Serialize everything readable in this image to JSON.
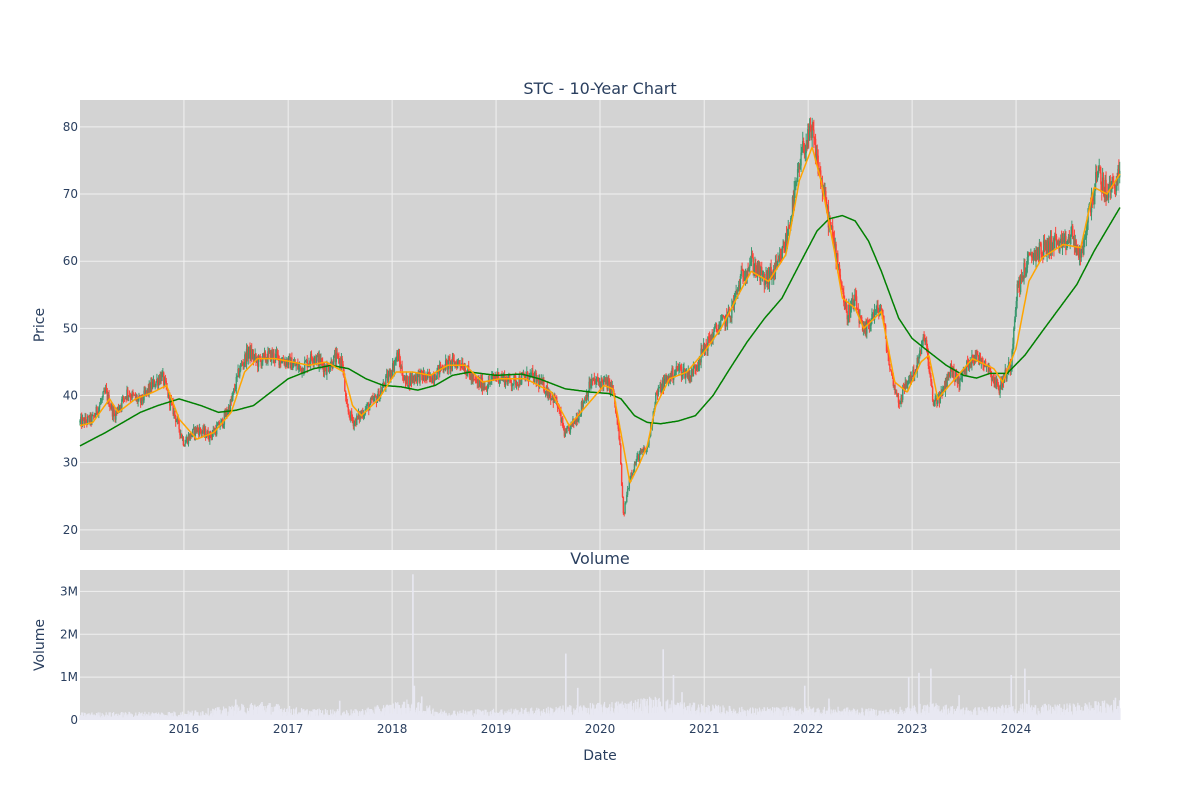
{
  "chart_data": [
    {
      "type": "candlestick",
      "title": "STC - 10-Year Chart",
      "ylabel": "Price",
      "xlabel": "",
      "x_range": [
        "2015-01-01",
        "2024-12-31"
      ],
      "ylim": [
        17,
        84
      ],
      "y_ticks": [
        20,
        30,
        40,
        50,
        60,
        70,
        80
      ],
      "x_tick_labels": [
        "2016",
        "2017",
        "2018",
        "2019",
        "2020",
        "2021",
        "2022",
        "2023",
        "2024"
      ],
      "grid": true,
      "colors": {
        "increasing": "#3d9970",
        "decreasing": "#ff4136",
        "ma_short": "#ffa500",
        "ma_long": "#008000",
        "plot_bg": "#d3d3d3"
      },
      "price_path": [
        [
          "2015-01-01",
          36
        ],
        [
          "2015-02-15",
          36.5
        ],
        [
          "2015-04-01",
          40.5
        ],
        [
          "2015-05-01",
          37
        ],
        [
          "2015-06-15",
          40.5
        ],
        [
          "2015-08-01",
          39
        ],
        [
          "2015-09-01",
          41
        ],
        [
          "2015-10-15",
          43
        ],
        [
          "2015-11-15",
          39
        ],
        [
          "2016-01-01",
          33
        ],
        [
          "2016-02-15",
          35
        ],
        [
          "2016-04-01",
          34
        ],
        [
          "2016-05-15",
          36
        ],
        [
          "2016-06-15",
          39
        ],
        [
          "2016-07-15",
          44
        ],
        [
          "2016-08-15",
          46.5
        ],
        [
          "2016-09-15",
          45
        ],
        [
          "2016-11-01",
          46
        ],
        [
          "2017-01-01",
          45
        ],
        [
          "2017-02-15",
          44
        ],
        [
          "2017-04-01",
          46
        ],
        [
          "2017-05-15",
          44
        ],
        [
          "2017-06-15",
          45.5
        ],
        [
          "2017-07-10",
          45
        ],
        [
          "2017-07-25",
          38
        ],
        [
          "2017-08-20",
          36
        ],
        [
          "2017-10-01",
          38
        ],
        [
          "2017-11-15",
          40
        ],
        [
          "2018-01-01",
          44
        ],
        [
          "2018-01-20",
          46
        ],
        [
          "2018-02-15",
          42
        ],
        [
          "2018-04-01",
          43
        ],
        [
          "2018-05-15",
          42.5
        ],
        [
          "2018-07-01",
          44.5
        ],
        [
          "2018-09-01",
          45
        ],
        [
          "2018-10-15",
          42
        ],
        [
          "2018-12-01",
          41.5
        ],
        [
          "2019-01-01",
          43
        ],
        [
          "2019-03-01",
          42
        ],
        [
          "2019-05-01",
          43
        ],
        [
          "2019-06-15",
          41.5
        ],
        [
          "2019-08-01",
          39
        ],
        [
          "2019-09-01",
          34
        ],
        [
          "2019-10-15",
          37
        ],
        [
          "2019-12-01",
          42
        ],
        [
          "2020-01-15",
          42
        ],
        [
          "2020-02-15",
          41
        ],
        [
          "2020-03-10",
          33
        ],
        [
          "2020-03-23",
          22
        ],
        [
          "2020-04-15",
          28
        ],
        [
          "2020-05-15",
          31
        ],
        [
          "2020-06-15",
          32
        ],
        [
          "2020-07-15",
          40
        ],
        [
          "2020-08-15",
          42
        ],
        [
          "2020-10-01",
          44
        ],
        [
          "2020-11-15",
          43
        ],
        [
          "2021-01-01",
          47
        ],
        [
          "2021-02-15",
          50
        ],
        [
          "2021-04-01",
          52
        ],
        [
          "2021-05-15",
          58
        ],
        [
          "2021-06-15",
          60
        ],
        [
          "2021-08-01",
          57
        ],
        [
          "2021-09-15",
          59
        ],
        [
          "2021-10-15",
          63
        ],
        [
          "2021-11-15",
          70
        ],
        [
          "2021-12-15",
          77
        ],
        [
          "2022-01-15",
          79
        ],
        [
          "2022-02-15",
          72
        ],
        [
          "2022-03-15",
          66
        ],
        [
          "2022-04-15",
          60
        ],
        [
          "2022-05-15",
          52
        ],
        [
          "2022-06-15",
          54
        ],
        [
          "2022-07-15",
          49
        ],
        [
          "2022-08-15",
          52
        ],
        [
          "2022-09-15",
          53
        ],
        [
          "2022-10-15",
          44
        ],
        [
          "2022-11-15",
          39
        ],
        [
          "2022-12-15",
          42
        ],
        [
          "2023-01-15",
          44
        ],
        [
          "2023-02-15",
          49
        ],
        [
          "2023-03-15",
          39
        ],
        [
          "2023-04-15",
          40
        ],
        [
          "2023-05-15",
          44
        ],
        [
          "2023-06-15",
          42
        ],
        [
          "2023-08-01",
          46
        ],
        [
          "2023-09-15",
          45
        ],
        [
          "2023-11-01",
          41
        ],
        [
          "2023-12-15",
          45
        ],
        [
          "2024-01-01",
          55
        ],
        [
          "2024-02-01",
          59
        ],
        [
          "2024-03-01",
          61
        ],
        [
          "2024-04-15",
          62
        ],
        [
          "2024-05-15",
          63
        ],
        [
          "2024-06-15",
          62
        ],
        [
          "2024-07-15",
          64
        ],
        [
          "2024-08-15",
          60
        ],
        [
          "2024-09-15",
          68
        ],
        [
          "2024-10-15",
          73
        ],
        [
          "2024-11-15",
          70
        ],
        [
          "2024-12-31",
          73
        ]
      ],
      "ma_long": [
        [
          "2015-01-01",
          32.5
        ],
        [
          "2015-04-01",
          34.5
        ],
        [
          "2015-08-01",
          37.5
        ],
        [
          "2015-10-01",
          38.5
        ],
        [
          "2015-12-15",
          39.5
        ],
        [
          "2016-03-01",
          38.5
        ],
        [
          "2016-05-01",
          37.5
        ],
        [
          "2016-07-01",
          37.8
        ],
        [
          "2016-09-01",
          38.5
        ],
        [
          "2016-11-01",
          40.5
        ],
        [
          "2017-01-01",
          42.5
        ],
        [
          "2017-04-01",
          44
        ],
        [
          "2017-06-01",
          44.5
        ],
        [
          "2017-08-01",
          44
        ],
        [
          "2017-10-01",
          42.5
        ],
        [
          "2017-12-01",
          41.5
        ],
        [
          "2018-02-01",
          41.3
        ],
        [
          "2018-04-01",
          40.8
        ],
        [
          "2018-06-01",
          41.5
        ],
        [
          "2018-08-01",
          43
        ],
        [
          "2018-10-01",
          43.5
        ],
        [
          "2019-01-01",
          43
        ],
        [
          "2019-04-01",
          43.2
        ],
        [
          "2019-06-01",
          42.5
        ],
        [
          "2019-09-01",
          41
        ],
        [
          "2019-12-01",
          40.5
        ],
        [
          "2020-02-01",
          40.3
        ],
        [
          "2020-03-15",
          39.5
        ],
        [
          "2020-05-01",
          37
        ],
        [
          "2020-06-15",
          36
        ],
        [
          "2020-08-01",
          35.8
        ],
        [
          "2020-10-01",
          36.2
        ],
        [
          "2020-12-01",
          37
        ],
        [
          "2021-02-01",
          40
        ],
        [
          "2021-04-01",
          44
        ],
        [
          "2021-06-01",
          48
        ],
        [
          "2021-08-01",
          51.5
        ],
        [
          "2021-10-01",
          54.5
        ],
        [
          "2021-12-01",
          59.5
        ],
        [
          "2022-02-01",
          64.5
        ],
        [
          "2022-03-15",
          66.3
        ],
        [
          "2022-05-01",
          66.8
        ],
        [
          "2022-06-15",
          66
        ],
        [
          "2022-08-01",
          63
        ],
        [
          "2022-09-15",
          58.5
        ],
        [
          "2022-11-15",
          51.5
        ],
        [
          "2023-01-01",
          48.5
        ],
        [
          "2023-03-01",
          46.5
        ],
        [
          "2023-05-01",
          44.5
        ],
        [
          "2023-07-01",
          43
        ],
        [
          "2023-08-15",
          42.6
        ],
        [
          "2023-10-01",
          43.3
        ],
        [
          "2023-12-01",
          43.3
        ],
        [
          "2024-02-01",
          46
        ],
        [
          "2024-04-01",
          49.5
        ],
        [
          "2024-06-01",
          53
        ],
        [
          "2024-08-01",
          56.5
        ],
        [
          "2024-10-01",
          61.5
        ],
        [
          "2024-12-31",
          68
        ]
      ],
      "ma_short": [
        [
          "2015-01-01",
          35.5
        ],
        [
          "2015-02-15",
          36
        ],
        [
          "2015-04-15",
          39.5
        ],
        [
          "2015-05-15",
          37.5
        ],
        [
          "2015-07-15",
          39.5
        ],
        [
          "2015-09-15",
          40.5
        ],
        [
          "2015-11-01",
          41.5
        ],
        [
          "2015-12-15",
          36.5
        ],
        [
          "2016-02-15",
          33.5
        ],
        [
          "2016-04-15",
          34.5
        ],
        [
          "2016-06-15",
          37.5
        ],
        [
          "2016-08-01",
          43.5
        ],
        [
          "2016-09-15",
          45.5
        ],
        [
          "2016-11-15",
          45.5
        ],
        [
          "2017-01-15",
          45
        ],
        [
          "2017-03-15",
          44.5
        ],
        [
          "2017-05-15",
          45
        ],
        [
          "2017-07-15",
          43.5
        ],
        [
          "2017-08-15",
          38.5
        ],
        [
          "2017-09-15",
          37
        ],
        [
          "2017-11-15",
          39.5
        ],
        [
          "2018-01-15",
          43.5
        ],
        [
          "2018-03-15",
          43.5
        ],
        [
          "2018-05-15",
          43
        ],
        [
          "2018-07-15",
          44.5
        ],
        [
          "2018-09-15",
          44.5
        ],
        [
          "2018-11-15",
          42
        ],
        [
          "2019-01-15",
          42.5
        ],
        [
          "2019-04-15",
          42.5
        ],
        [
          "2019-07-15",
          40.5
        ],
        [
          "2019-09-15",
          35.5
        ],
        [
          "2019-11-15",
          38.5
        ],
        [
          "2020-01-15",
          41.5
        ],
        [
          "2020-02-15",
          41
        ],
        [
          "2020-03-25",
          32
        ],
        [
          "2020-04-15",
          27
        ],
        [
          "2020-05-15",
          29.5
        ],
        [
          "2020-06-15",
          32.5
        ],
        [
          "2020-07-15",
          38.5
        ],
        [
          "2020-09-01",
          42.5
        ],
        [
          "2020-11-01",
          43.5
        ],
        [
          "2021-01-01",
          46.5
        ],
        [
          "2021-03-01",
          50
        ],
        [
          "2021-05-01",
          55
        ],
        [
          "2021-06-15",
          58.5
        ],
        [
          "2021-08-15",
          57
        ],
        [
          "2021-10-15",
          61
        ],
        [
          "2021-12-01",
          72
        ],
        [
          "2022-01-15",
          77
        ],
        [
          "2022-02-15",
          72
        ],
        [
          "2022-04-01",
          62
        ],
        [
          "2022-05-01",
          54.5
        ],
        [
          "2022-06-15",
          53
        ],
        [
          "2022-07-15",
          50
        ],
        [
          "2022-09-15",
          52.5
        ],
        [
          "2022-11-01",
          42
        ],
        [
          "2022-12-15",
          40.5
        ],
        [
          "2023-02-01",
          45
        ],
        [
          "2023-03-01",
          46
        ],
        [
          "2023-04-01",
          39.5
        ],
        [
          "2023-06-01",
          42.5
        ],
        [
          "2023-08-01",
          45.5
        ],
        [
          "2023-10-15",
          44
        ],
        [
          "2023-11-15",
          42
        ],
        [
          "2024-01-01",
          47
        ],
        [
          "2024-02-15",
          57
        ],
        [
          "2024-04-01",
          60.5
        ],
        [
          "2024-06-15",
          62.5
        ],
        [
          "2024-08-15",
          62
        ],
        [
          "2024-10-01",
          71
        ],
        [
          "2024-11-15",
          70
        ],
        [
          "2024-12-31",
          73
        ]
      ]
    },
    {
      "type": "bar",
      "title": "Volume",
      "ylabel": "Volume",
      "xlabel": "Date",
      "ylim": [
        0,
        3500000
      ],
      "y_ticks": [
        0,
        1000000,
        2000000,
        3000000
      ],
      "y_tick_labels": [
        "0",
        "1M",
        "2M",
        "3M"
      ],
      "x_tick_labels": [
        "2016",
        "2017",
        "2018",
        "2019",
        "2020",
        "2021",
        "2022",
        "2023",
        "2024"
      ],
      "grid": true,
      "colors": {
        "bars": "#e8e8f2",
        "plot_bg": "#d3d3d3"
      },
      "baseline_volume": [
        [
          "2015-01-01",
          120000
        ],
        [
          "2016-01-01",
          140000
        ],
        [
          "2016-06-01",
          220000
        ],
        [
          "2016-10-01",
          300000
        ],
        [
          "2017-03-01",
          180000
        ],
        [
          "2017-09-01",
          170000
        ],
        [
          "2018-03-01",
          330000
        ],
        [
          "2018-07-01",
          160000
        ],
        [
          "2019-01-01",
          180000
        ],
        [
          "2019-06-01",
          200000
        ],
        [
          "2020-03-01",
          300000
        ],
        [
          "2020-07-01",
          380000
        ],
        [
          "2020-11-01",
          280000
        ],
        [
          "2021-06-01",
          200000
        ],
        [
          "2022-01-01",
          220000
        ],
        [
          "2022-06-01",
          200000
        ],
        [
          "2022-10-01",
          170000
        ],
        [
          "2023-03-01",
          280000
        ],
        [
          "2023-08-01",
          200000
        ],
        [
          "2024-01-01",
          260000
        ],
        [
          "2024-06-01",
          250000
        ],
        [
          "2024-12-31",
          330000
        ]
      ],
      "spikes": [
        [
          "2016-07-01",
          480000
        ],
        [
          "2016-10-01",
          420000
        ],
        [
          "2017-07-01",
          450000
        ],
        [
          "2018-03-15",
          3400000
        ],
        [
          "2018-03-20",
          800000
        ],
        [
          "2018-04-15",
          550000
        ],
        [
          "2019-09-03",
          1550000
        ],
        [
          "2019-10-15",
          750000
        ],
        [
          "2020-08-10",
          1650000
        ],
        [
          "2020-09-15",
          1050000
        ],
        [
          "2020-10-15",
          650000
        ],
        [
          "2021-12-20",
          800000
        ],
        [
          "2022-03-15",
          500000
        ],
        [
          "2022-12-20",
          1000000
        ],
        [
          "2023-01-25",
          1100000
        ],
        [
          "2023-03-08",
          1200000
        ],
        [
          "2023-06-15",
          580000
        ],
        [
          "2023-12-15",
          1050000
        ],
        [
          "2024-02-01",
          1200000
        ],
        [
          "2024-02-15",
          700000
        ],
        [
          "2024-12-15",
          520000
        ]
      ]
    }
  ]
}
